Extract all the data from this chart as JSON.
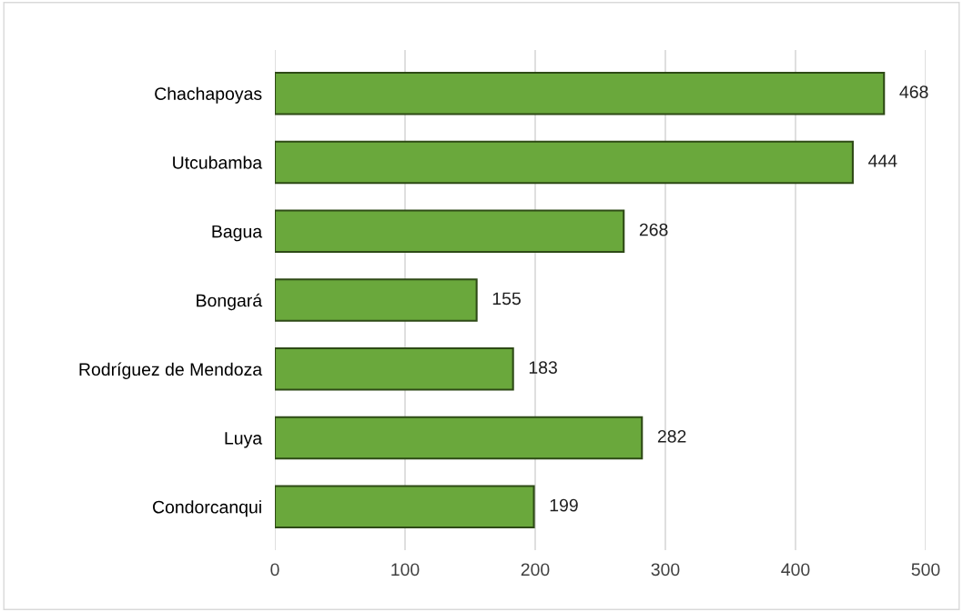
{
  "chart_data": {
    "type": "bar",
    "orientation": "horizontal",
    "categories": [
      "Chachapoyas",
      "Utcubamba",
      "Bagua",
      "Bongará",
      "Rodríguez de Mendoza",
      "Luya",
      "Condorcanqui"
    ],
    "values": [
      468,
      444,
      268,
      155,
      183,
      282,
      199
    ],
    "color": "#6aa83c",
    "xlim": [
      0,
      500
    ],
    "xticks": [
      0,
      100,
      200,
      300,
      400,
      500
    ],
    "grid": "x",
    "data_labels": true,
    "legend": false
  }
}
